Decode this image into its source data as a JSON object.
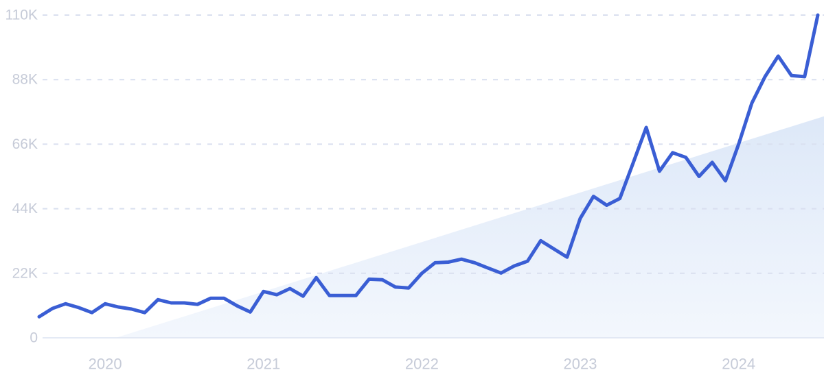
{
  "page": {
    "background": "#ffffff"
  },
  "chart_data": {
    "type": "line",
    "title": "",
    "x_unit": "month",
    "months": [
      "2019-08",
      "2019-09",
      "2019-10",
      "2019-11",
      "2019-12",
      "2020-01",
      "2020-02",
      "2020-03",
      "2020-04",
      "2020-05",
      "2020-06",
      "2020-07",
      "2020-08",
      "2020-09",
      "2020-10",
      "2020-11",
      "2020-12",
      "2021-01",
      "2021-02",
      "2021-03",
      "2021-04",
      "2021-05",
      "2021-06",
      "2021-07",
      "2021-08",
      "2021-09",
      "2021-10",
      "2021-11",
      "2021-12",
      "2022-01",
      "2022-02",
      "2022-03",
      "2022-04",
      "2022-05",
      "2022-06",
      "2022-07",
      "2022-08",
      "2022-09",
      "2022-10",
      "2022-11",
      "2022-12",
      "2023-01",
      "2023-02",
      "2023-03",
      "2023-04",
      "2023-05",
      "2023-06",
      "2023-07",
      "2023-08",
      "2023-09",
      "2023-10",
      "2023-11",
      "2023-12",
      "2024-01",
      "2024-02",
      "2024-03",
      "2024-04",
      "2024-05",
      "2024-06",
      "2024-07"
    ],
    "values": [
      7200,
      10000,
      11600,
      10300,
      8600,
      11600,
      10500,
      9800,
      8600,
      13000,
      11900,
      11900,
      11400,
      13500,
      13500,
      10900,
      8800,
      15800,
      14700,
      16800,
      14200,
      20500,
      14400,
      14400,
      14400,
      20000,
      19800,
      17300,
      17000,
      22000,
      25600,
      25800,
      26800,
      25600,
      23800,
      22100,
      24500,
      26100,
      33100,
      30300,
      27500,
      40700,
      48200,
      45200,
      47500,
      59500,
      71700,
      56800,
      63100,
      61500,
      55000,
      59800,
      53500,
      66000,
      80000,
      89000,
      96000,
      89400,
      89000,
      110000
    ],
    "ylim": [
      0,
      110000
    ],
    "y_ticks": [
      {
        "value": 110000,
        "label": "110K"
      },
      {
        "value": 88000,
        "label": "88K"
      },
      {
        "value": 66000,
        "label": "66K"
      },
      {
        "value": 44000,
        "label": "44K"
      },
      {
        "value": 22000,
        "label": "22K"
      },
      {
        "value": 0,
        "label": "0"
      }
    ],
    "x_tick_years": [
      "2020",
      "2021",
      "2022",
      "2023",
      "2024"
    ],
    "grid": "horizontal-dashed",
    "legend": "none",
    "trend_area": {
      "shape": "diagonal-wedge",
      "start_month_index": 5.8,
      "start_value": 0,
      "end_value": 75500
    },
    "colors": {
      "line": "#3A5ED4",
      "grid_dashed": "#D9DFEF",
      "baseline": "#DCE3F2",
      "tick_text": "#C6CBD8",
      "band_top": "#DDE8F8",
      "band_bottom": "#F3F7FD"
    }
  }
}
